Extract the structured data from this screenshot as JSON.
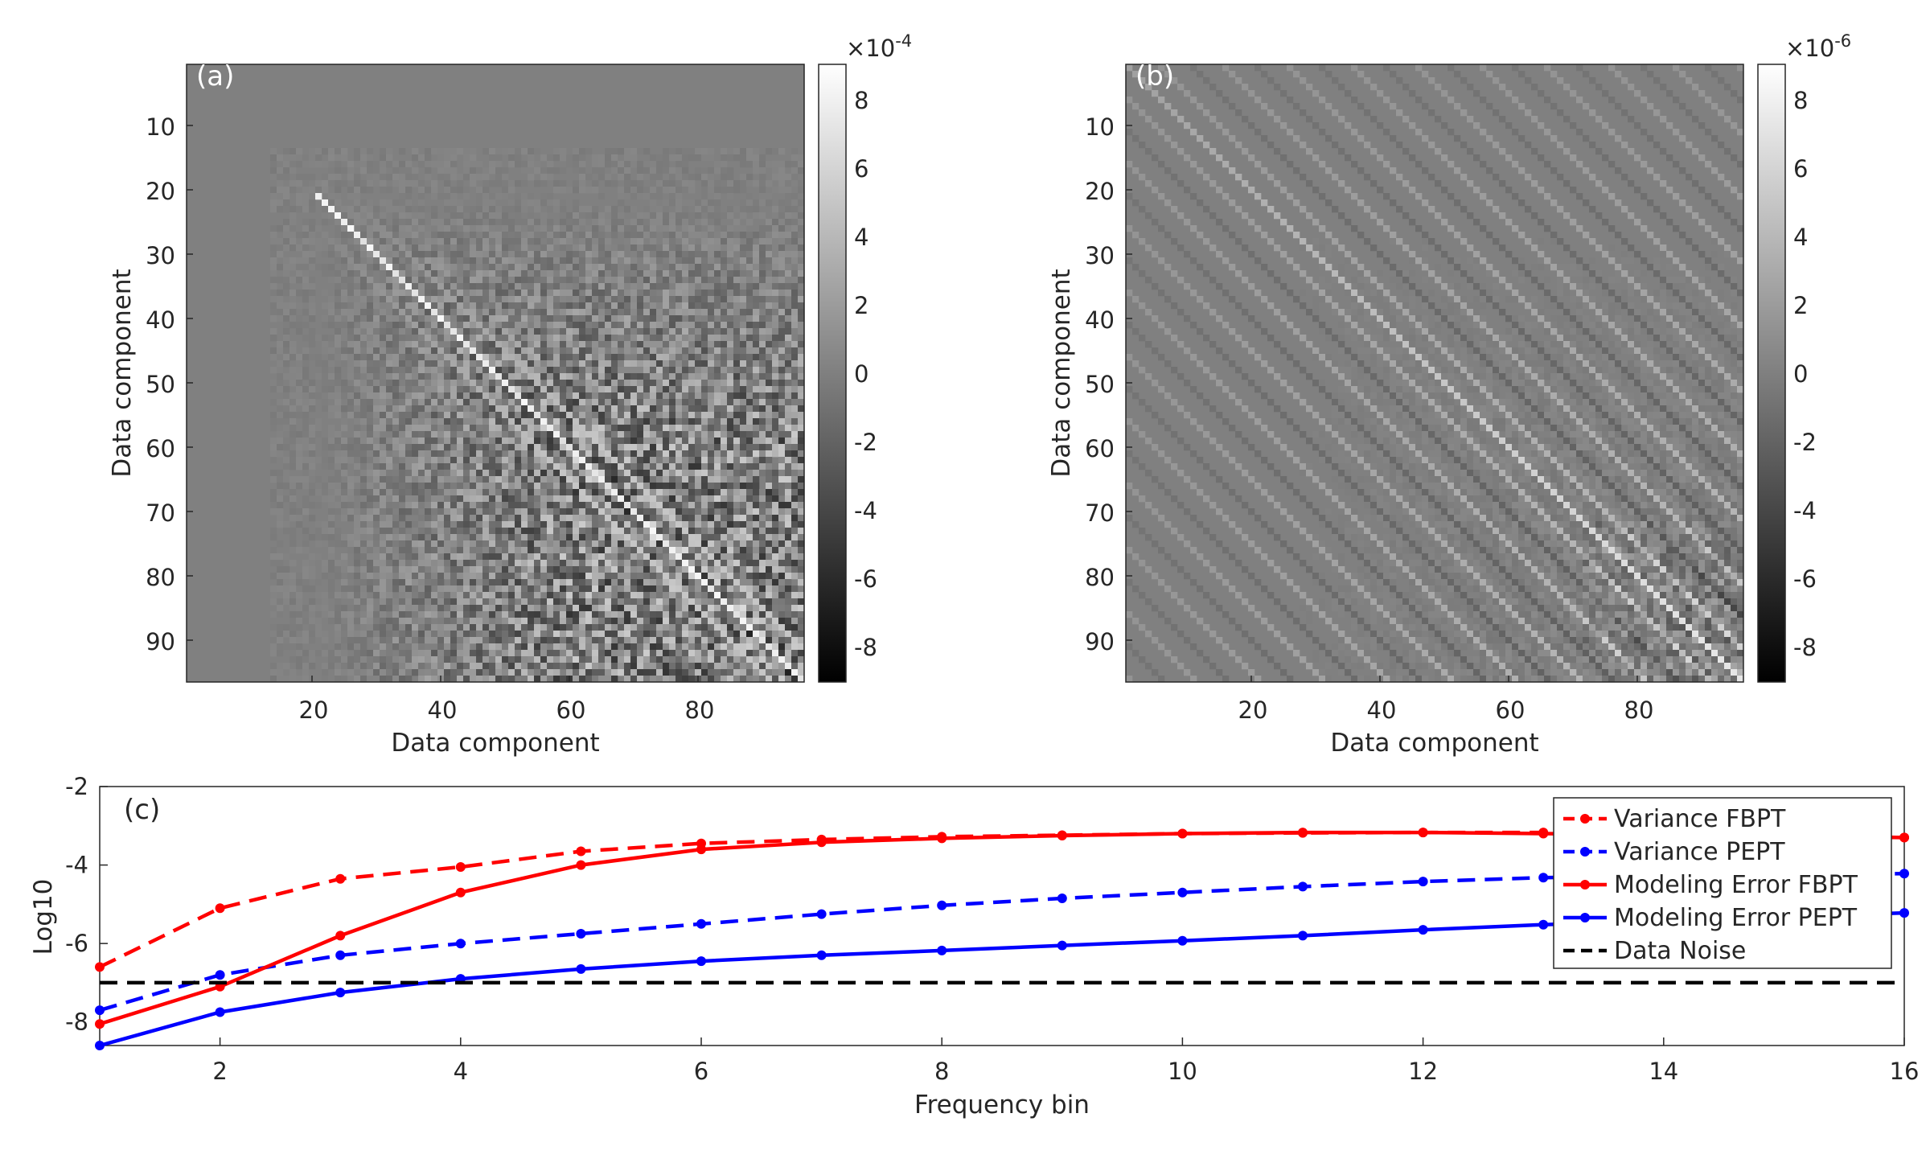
{
  "chart_data": [
    {
      "type": "heatmap",
      "panel_label": "(a)",
      "xlabel": "Data component",
      "ylabel": "Data component",
      "x_ticks": [
        "20",
        "40",
        "60",
        "80"
      ],
      "y_ticks": [
        "10",
        "20",
        "30",
        "40",
        "50",
        "60",
        "70",
        "80",
        "90"
      ],
      "matrix_size": 96,
      "colorbar": {
        "exponent_label": "×10",
        "exponent": "-4",
        "ticks": [
          "8",
          "6",
          "4",
          "2",
          "0",
          "-2",
          "-4",
          "-6",
          "-8"
        ],
        "range": [
          -9,
          9
        ]
      },
      "colormap": "gray"
    },
    {
      "type": "heatmap",
      "panel_label": "(b)",
      "xlabel": "Data component",
      "ylabel": "Data component",
      "x_ticks": [
        "20",
        "40",
        "60",
        "80"
      ],
      "y_ticks": [
        "10",
        "20",
        "30",
        "40",
        "50",
        "60",
        "70",
        "80",
        "90"
      ],
      "matrix_size": 96,
      "colorbar": {
        "exponent_label": "×10",
        "exponent": "-6",
        "ticks": [
          "8",
          "6",
          "4",
          "2",
          "0",
          "-2",
          "-4",
          "-6",
          "-8"
        ],
        "range": [
          -9,
          9
        ]
      },
      "colormap": "gray"
    },
    {
      "type": "line",
      "panel_label": "(c)",
      "xlabel": "Frequency bin",
      "ylabel": "Log10",
      "xlim": [
        1,
        16
      ],
      "ylim": [
        -8.6,
        -2
      ],
      "x_ticks": [
        "2",
        "4",
        "6",
        "8",
        "10",
        "12",
        "14",
        "16"
      ],
      "y_ticks": [
        "-2",
        "-4",
        "-6",
        "-8"
      ],
      "x": [
        1,
        2,
        3,
        4,
        5,
        6,
        7,
        8,
        9,
        10,
        11,
        12,
        13,
        14,
        15,
        16
      ],
      "series": [
        {
          "name": "Variance FBPT",
          "color": "#ff0000",
          "dash": "dashed",
          "values": [
            -6.6,
            -5.1,
            -4.35,
            -4.05,
            -3.65,
            -3.45,
            -3.35,
            -3.28,
            -3.24,
            -3.2,
            -3.18,
            -3.17,
            -3.17,
            -3.2,
            -3.25,
            -3.3
          ]
        },
        {
          "name": "Variance PEPT",
          "color": "#0000ff",
          "dash": "dashed",
          "values": [
            -7.7,
            -6.8,
            -6.3,
            -6.0,
            -5.75,
            -5.5,
            -5.25,
            -5.03,
            -4.85,
            -4.7,
            -4.55,
            -4.42,
            -4.32,
            -4.28,
            -4.25,
            -4.22
          ]
        },
        {
          "name": "Modeling Error FBPT",
          "color": "#ff0000",
          "dash": "solid",
          "values": [
            -8.05,
            -7.1,
            -5.8,
            -4.7,
            -4.0,
            -3.6,
            -3.42,
            -3.32,
            -3.25,
            -3.2,
            -3.17,
            -3.17,
            -3.2,
            -3.23,
            -3.27,
            -3.3
          ]
        },
        {
          "name": "Modeling Error PEPT",
          "color": "#0000ff",
          "dash": "solid",
          "values": [
            -8.6,
            -7.75,
            -7.25,
            -6.9,
            -6.65,
            -6.45,
            -6.3,
            -6.18,
            -6.05,
            -5.93,
            -5.8,
            -5.65,
            -5.52,
            -5.42,
            -5.32,
            -5.22
          ]
        },
        {
          "name": "Data Noise",
          "color": "#000000",
          "dash": "dashed",
          "markers": false,
          "values": [
            -7,
            -7,
            -7,
            -7,
            -7,
            -7,
            -7,
            -7,
            -7,
            -7,
            -7,
            -7,
            -7,
            -7,
            -7,
            -7
          ]
        }
      ],
      "legend_position": "top-right",
      "grid": false
    }
  ]
}
